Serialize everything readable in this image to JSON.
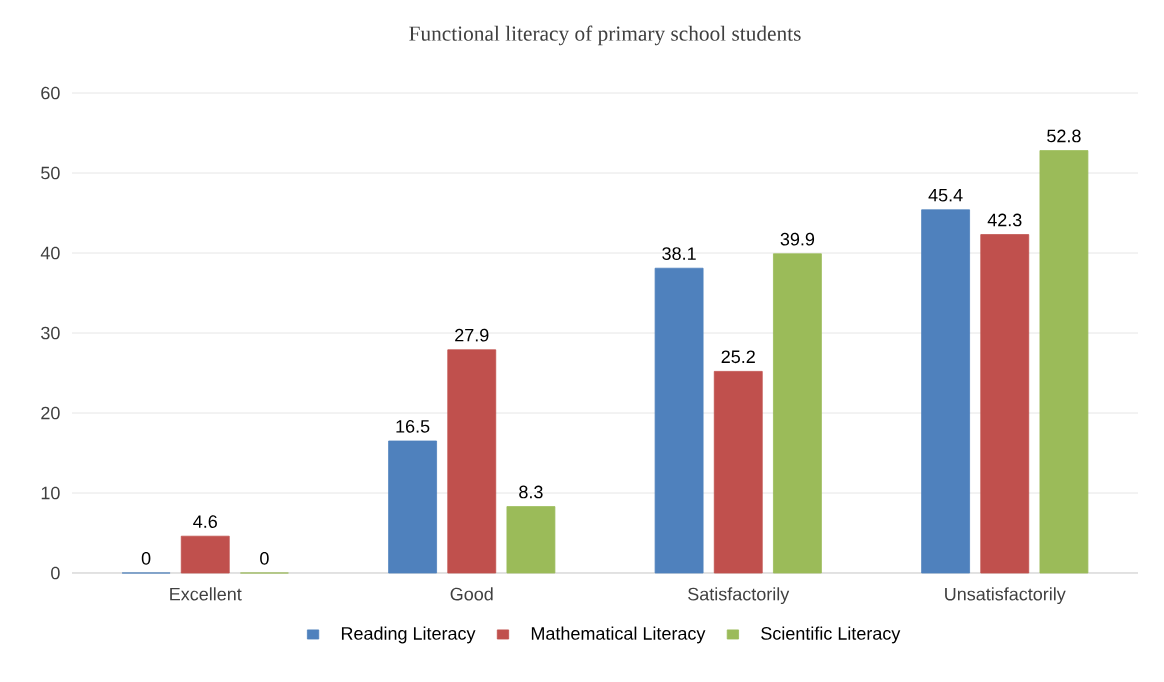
{
  "chart_data": {
    "type": "bar",
    "title": "Functional literacy of primary school students",
    "categories": [
      "Excellent",
      "Good",
      "Satisfactorily",
      "Unsatisfactorily"
    ],
    "series": [
      {
        "name": "Reading Literacy",
        "color": "#4f81bd",
        "values": [
          0,
          16.5,
          38.1,
          45.4
        ]
      },
      {
        "name": "Mathematical Literacy",
        "color": "#c0504d",
        "values": [
          4.6,
          27.9,
          25.2,
          42.3
        ]
      },
      {
        "name": "Scientific Literacy",
        "color": "#9bbb59",
        "values": [
          0,
          8.3,
          39.9,
          52.8
        ]
      }
    ],
    "ylim": [
      0,
      60
    ],
    "yticks": [
      0,
      10,
      20,
      30,
      40,
      50,
      60
    ],
    "grid": "y",
    "legend": "bottom",
    "data_labels": true
  }
}
